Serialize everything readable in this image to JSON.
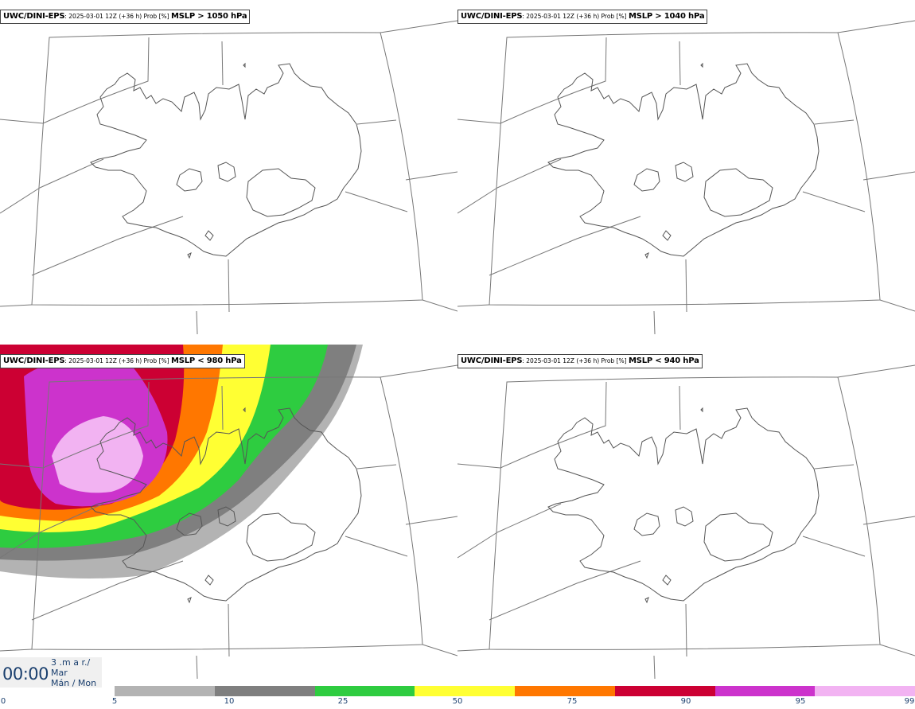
{
  "panels": [
    {
      "model": "UWC/DINI-EPS",
      "meta": ": 2025-03-01 12Z (+36 h) Prob [%] ",
      "var": "MSLP > 1050 hPa"
    },
    {
      "model": "UWC/DINI-EPS",
      "meta": ": 2025-03-01 12Z (+36 h) Prob [%] ",
      "var": "MSLP > 1040 hPa"
    },
    {
      "model": "UWC/DINI-EPS",
      "meta": ": 2025-03-01 12Z (+36 h) Prob [%] ",
      "var": "MSLP < 980 hPa"
    },
    {
      "model": "UWC/DINI-EPS",
      "meta": ": 2025-03-01 12Z (+36 h) Prob [%] ",
      "var": "MSLP < 940 hPa"
    }
  ],
  "time": {
    "clock": "00:00",
    "line1": "3 .m a r./",
    "line2": "Mar",
    "line3": "Mán / Mon"
  },
  "colorbar": {
    "ticks": [
      "0",
      "5",
      "10",
      "25",
      "50",
      "75",
      "90",
      "95",
      "99"
    ],
    "colors": [
      "#b3b3b3",
      "#7f7f7f",
      "#2ecc40",
      "#ffff33",
      "#ff7700",
      "#cc0033",
      "#cc33cc",
      "#f2b3f2"
    ]
  }
}
